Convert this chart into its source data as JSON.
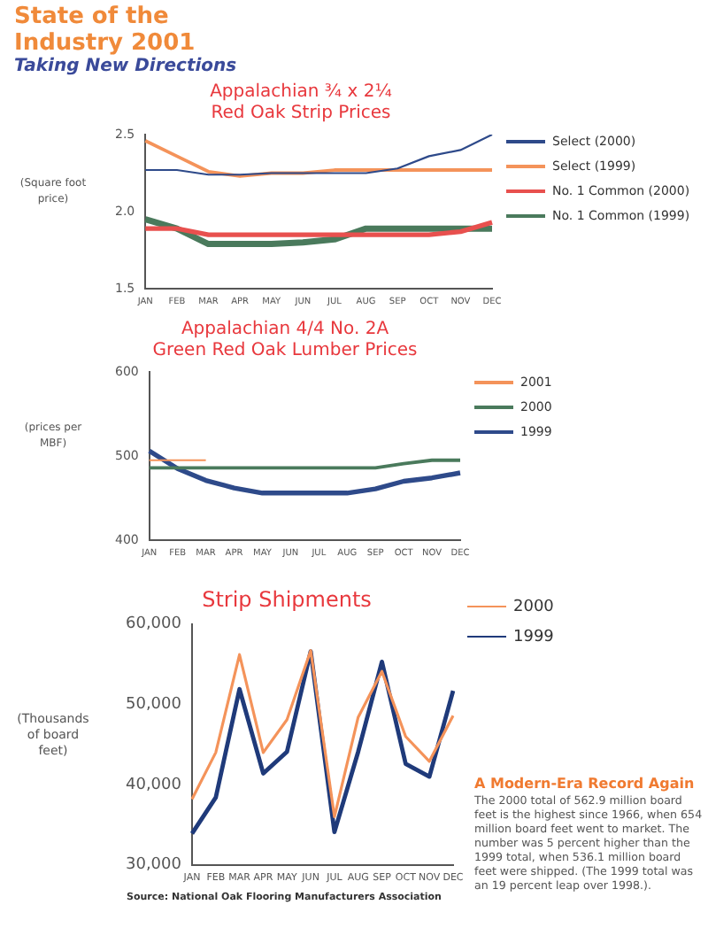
{
  "chart_data": [
    {
      "type": "other",
      "title": "State of the Industry 2001",
      "subtitle": "Taking New Directions"
    },
    {
      "type": "line",
      "title": "Appalachian ¾ x 2¼\nRed Oak Strip Prices",
      "ylabel": "(Square foot price)",
      "categories": [
        "JAN",
        "FEB",
        "MAR",
        "APR",
        "MAY",
        "JUN",
        "JUL",
        "AUG",
        "SEP",
        "OCT",
        "NOV",
        "DEC"
      ],
      "ylim": [
        1.5,
        2.5
      ],
      "yticks": [
        {
          "value": 1.5,
          "label": "1.5"
        },
        {
          "value": 2,
          "label": "2.0"
        },
        {
          "value": 2.5,
          "label": "2.5"
        }
      ],
      "grid": false,
      "legend": "right",
      "series": [
        {
          "name": "Select (2000)",
          "color": "#2e4a8a",
          "values": [
            2.27,
            2.27,
            2.24,
            2.24,
            2.25,
            2.25,
            2.25,
            2.25,
            2.28,
            2.36,
            2.4,
            2.5
          ]
        },
        {
          "name": "Select (1999)",
          "color": "#f4935a",
          "values": [
            2.46,
            2.36,
            2.26,
            2.23,
            2.25,
            2.25,
            2.27,
            2.27,
            2.27,
            2.27,
            2.27,
            2.27
          ]
        },
        {
          "name": "No. 1 Common (2000)",
          "color": "#e8504e",
          "values": [
            1.89,
            1.89,
            1.85,
            1.85,
            1.85,
            1.85,
            1.85,
            1.85,
            1.85,
            1.85,
            1.87,
            1.93
          ]
        },
        {
          "name": "No. 1 Common (1999)",
          "color": "#4a7a5c",
          "values": [
            1.95,
            1.89,
            1.79,
            1.79,
            1.79,
            1.8,
            1.82,
            1.89,
            1.89,
            1.89,
            1.89,
            1.89
          ]
        }
      ]
    },
    {
      "type": "line",
      "title": "Appalachian 4/4 No. 2A\nGreen Red Oak Lumber Prices",
      "ylabel": "(prices per MBF)",
      "categories": [
        "JAN",
        "FEB",
        "MAR",
        "APR",
        "MAY",
        "JUN",
        "JUL",
        "AUG",
        "SEP",
        "OCT",
        "NOV",
        "DEC"
      ],
      "ylim": [
        400,
        600
      ],
      "yticks": [
        400,
        500,
        600
      ],
      "grid": false,
      "legend": "right",
      "series": [
        {
          "name": "2001",
          "color": "#f4935a",
          "values": [
            495,
            495,
            495,
            null,
            null,
            null,
            null,
            null,
            null,
            null,
            null,
            null
          ]
        },
        {
          "name": "2000",
          "color": "#4a7a5c",
          "values": [
            486,
            486,
            486,
            486,
            486,
            486,
            486,
            486,
            486,
            491,
            495,
            495
          ]
        },
        {
          "name": "1999",
          "color": "#2e4a8a",
          "values": [
            506,
            485,
            471,
            462,
            456,
            456,
            456,
            456,
            461,
            470,
            474,
            480
          ]
        }
      ]
    },
    {
      "type": "line",
      "title": "Strip Shipments",
      "ylabel": "(Thousands of board feet)",
      "categories": [
        "JAN",
        "FEB",
        "MAR",
        "APR",
        "MAY",
        "JUN",
        "JUL",
        "AUG",
        "SEP",
        "OCT",
        "NOV",
        "DEC"
      ],
      "ylim": [
        30000,
        60000
      ],
      "yticks": [
        {
          "value": 30000,
          "label": "30,000"
        },
        {
          "value": 40000,
          "label": "40,000"
        },
        {
          "value": 50000,
          "label": "50,000"
        },
        {
          "value": 60000,
          "label": "60,000"
        }
      ],
      "grid": false,
      "legend": "top right",
      "annotations": [
        "Source: National Oak Flooring Manufacturers Association"
      ],
      "series": [
        {
          "name": "2000",
          "color": "#f4935a",
          "values": [
            38200,
            44000,
            56200,
            44000,
            48100,
            56700,
            36000,
            48400,
            54100,
            46000,
            42900,
            48600
          ]
        },
        {
          "name": "1999",
          "color": "#1f3a7a",
          "values": [
            33900,
            38400,
            51900,
            41400,
            44100,
            56600,
            34100,
            44100,
            55300,
            42600,
            41000,
            51700
          ]
        }
      ]
    },
    {
      "type": "other",
      "title": "A Modern-Era Record Again",
      "annotations": [
        "The 2000 total of 562.9 million board feet is the highest since 1966, when 654 million board feet went to market. The number was 5 percent higher than the 1999 total, when 536.1 million board feet were shipped. (The 1999 total was an 19 percent leap over 1998.)."
      ]
    }
  ]
}
